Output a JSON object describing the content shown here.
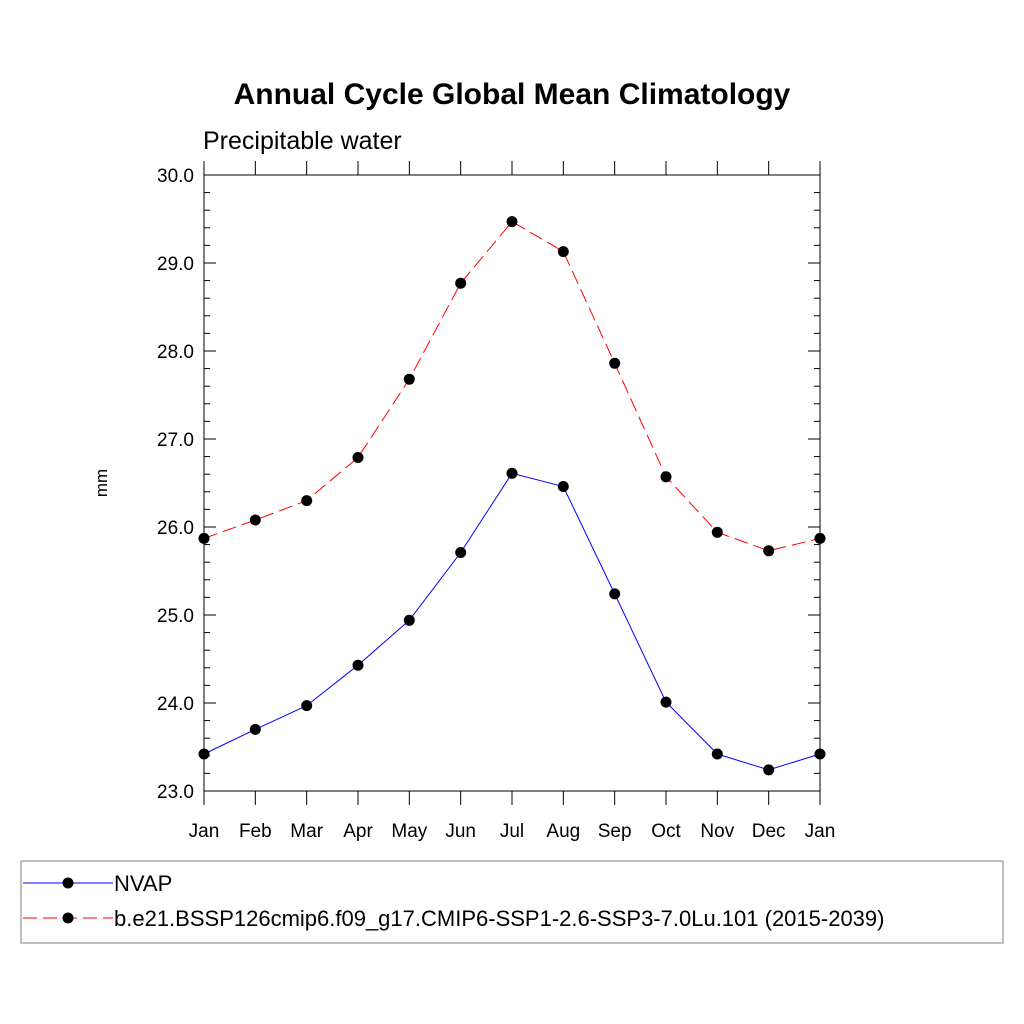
{
  "chart_data": {
    "type": "line",
    "title": "Annual Cycle Global Mean Climatology",
    "subtitle": "Precipitable water",
    "xlabel": "",
    "ylabel": "mm",
    "ylim": [
      23.0,
      30.0
    ],
    "yticks": [
      "23.0",
      "24.0",
      "25.0",
      "26.0",
      "27.0",
      "28.0",
      "29.0",
      "30.0"
    ],
    "categories": [
      "Jan",
      "Feb",
      "Mar",
      "Apr",
      "May",
      "Jun",
      "Jul",
      "Aug",
      "Sep",
      "Oct",
      "Nov",
      "Dec",
      "Jan"
    ],
    "grid": false,
    "legend_position": "bottom",
    "series": [
      {
        "name": "NVAP",
        "color": "#0000ff",
        "line_style": "solid",
        "marker": "filled-circle",
        "values": [
          23.42,
          23.7,
          23.97,
          24.43,
          24.94,
          25.71,
          26.61,
          26.46,
          25.24,
          24.01,
          23.42,
          23.24,
          23.42
        ]
      },
      {
        "name": "b.e21.BSSP126cmip6.f09_g17.CMIP6-SSP1-2.6-SSP3-7.0Lu.101 (2015-2039)",
        "color": "#ff0000",
        "line_style": "dashed",
        "marker": "filled-circle",
        "values": [
          25.87,
          26.08,
          26.3,
          26.79,
          27.68,
          28.77,
          29.47,
          29.13,
          27.86,
          26.57,
          25.94,
          25.73,
          25.87
        ]
      }
    ]
  }
}
